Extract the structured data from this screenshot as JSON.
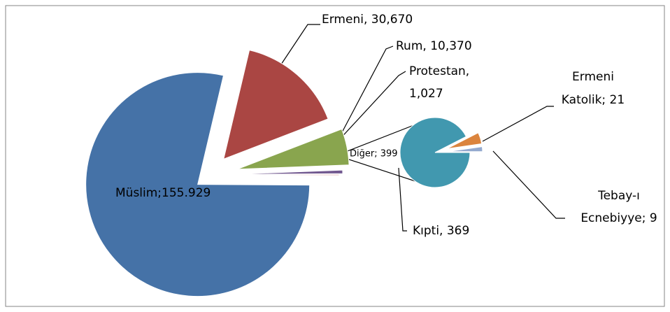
{
  "chart_data": {
    "type": "pie-of-pie",
    "pies": [
      {
        "values": [
          155929,
          30670,
          10370,
          1027,
          399
        ],
        "value_labels": [
          [
            "Müslim;155.929"
          ],
          [
            "Ermeni, 30,670"
          ],
          [
            "Rum, 10,370"
          ],
          [
            "Protestan,",
            "1,027"
          ],
          [
            "Diğer; 399"
          ]
        ],
        "colors": [
          "#4572a7",
          "#aa4643",
          "#89a54e",
          "#71588f",
          "#e6b9b8"
        ]
      },
      {
        "values": [
          369,
          21,
          9
        ],
        "value_labels": [
          [
            "Kıpti, 369"
          ],
          [
            "Ermeni",
            "Katolik; 21"
          ],
          [
            "Tebay-ı",
            "Ecnebiyye; 9"
          ]
        ],
        "colors": [
          "#4198af",
          "#db843d",
          "#93a9cf"
        ]
      }
    ]
  }
}
